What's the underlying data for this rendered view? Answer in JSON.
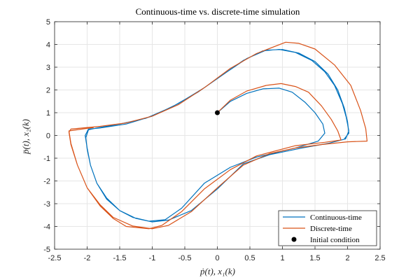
{
  "chart_data": {
    "type": "line",
    "title": "Continuous-time vs. discrete-time simulation",
    "xlabel": "ṗ(t), x₁(k)",
    "ylabel": "p̈(t), x₂(k)",
    "xlim": [
      -2.5,
      2.5
    ],
    "ylim": [
      -5,
      5
    ],
    "xticks": [
      -2.5,
      -2,
      -1.5,
      -1,
      -0.5,
      0,
      0.5,
      1,
      1.5,
      2,
      2.5
    ],
    "xtick_labels": [
      "-2.5",
      "-2",
      "-1.5",
      "-1",
      "-0.5",
      "0",
      "0.5",
      "1",
      "1.5",
      "2",
      "2.5"
    ],
    "yticks": [
      -5,
      -4,
      -3,
      -2,
      -1,
      0,
      1,
      2,
      3,
      4,
      5
    ],
    "ytick_labels": [
      "-5",
      "-4",
      "-3",
      "-2",
      "-1",
      "0",
      "1",
      "2",
      "3",
      "4",
      "5"
    ],
    "grid": true,
    "legend_position": "bottom-right",
    "series": [
      {
        "name": "Continuous-time",
        "color": "#0072BD",
        "points": [
          [
            0,
            1
          ],
          [
            0.2,
            1.5
          ],
          [
            0.45,
            1.85
          ],
          [
            0.7,
            2.05
          ],
          [
            0.95,
            2.08
          ],
          [
            1.15,
            1.9
          ],
          [
            1.35,
            1.45
          ],
          [
            1.5,
            1.0
          ],
          [
            1.62,
            0.5
          ],
          [
            1.65,
            0.1
          ],
          [
            1.55,
            -0.25
          ],
          [
            1.2,
            -0.55
          ],
          [
            0.6,
            -0.95
          ],
          [
            0.2,
            -1.4
          ],
          [
            -0.2,
            -2.1
          ],
          [
            -0.55,
            -3.2
          ],
          [
            -0.8,
            -3.7
          ],
          [
            -1.05,
            -3.77
          ],
          [
            -1.3,
            -3.6
          ],
          [
            -1.5,
            -3.3
          ],
          [
            -1.7,
            -2.75
          ],
          [
            -1.85,
            -2.1
          ],
          [
            -1.95,
            -1.3
          ],
          [
            -2.0,
            -0.6
          ],
          [
            -2.02,
            -0.1
          ],
          [
            -1.98,
            0.25
          ],
          [
            -1.85,
            0.33
          ],
          [
            -1.5,
            0.5
          ],
          [
            -1.1,
            0.75
          ],
          [
            -0.7,
            1.25
          ],
          [
            -0.3,
            1.9
          ],
          [
            0.1,
            2.7
          ],
          [
            0.4,
            3.3
          ],
          [
            0.7,
            3.72
          ],
          [
            0.95,
            3.78
          ],
          [
            1.2,
            3.65
          ],
          [
            1.45,
            3.3
          ],
          [
            1.65,
            2.8
          ],
          [
            1.8,
            2.2
          ],
          [
            1.92,
            1.4
          ],
          [
            1.98,
            0.8
          ],
          [
            2.02,
            0.2
          ],
          [
            1.97,
            -0.15
          ],
          [
            1.7,
            -0.35
          ],
          [
            1.3,
            -0.55
          ],
          [
            0.8,
            -0.85
          ],
          [
            0.4,
            -1.25
          ],
          [
            0.0,
            -2.35
          ],
          [
            -0.4,
            -3.3
          ],
          [
            -0.75,
            -3.72
          ],
          [
            -1.0,
            -3.8
          ],
          [
            -1.25,
            -3.65
          ],
          [
            -1.5,
            -3.3
          ],
          [
            -1.7,
            -2.8
          ],
          [
            -1.85,
            -2.1
          ],
          [
            -1.95,
            -1.3
          ],
          [
            -2.0,
            -0.55
          ],
          [
            -2.03,
            0.0
          ],
          [
            -1.98,
            0.28
          ],
          [
            -1.8,
            0.33
          ],
          [
            -1.4,
            0.5
          ],
          [
            -1.0,
            0.85
          ],
          [
            -0.6,
            1.4
          ],
          [
            -0.2,
            2.1
          ],
          [
            0.15,
            2.8
          ],
          [
            0.45,
            3.38
          ],
          [
            0.75,
            3.75
          ],
          [
            1.0,
            3.78
          ],
          [
            1.25,
            3.62
          ],
          [
            1.5,
            3.25
          ],
          [
            1.7,
            2.7
          ],
          [
            1.85,
            2.0
          ],
          [
            1.95,
            1.2
          ],
          [
            2.0,
            0.6
          ],
          [
            2.02,
            0.1
          ],
          [
            1.95,
            -0.15
          ]
        ]
      },
      {
        "name": "Discrete-time",
        "color": "#D95319",
        "points": [
          [
            0,
            1
          ],
          [
            0.2,
            1.55
          ],
          [
            0.45,
            1.95
          ],
          [
            0.75,
            2.2
          ],
          [
            0.98,
            2.28
          ],
          [
            1.2,
            2.15
          ],
          [
            1.4,
            1.9
          ],
          [
            1.6,
            1.3
          ],
          [
            1.75,
            0.7
          ],
          [
            1.85,
            0.2
          ],
          [
            1.9,
            -0.2
          ],
          [
            1.65,
            -0.3
          ],
          [
            1.2,
            -0.45
          ],
          [
            0.6,
            -0.9
          ],
          [
            0.2,
            -1.5
          ],
          [
            -0.2,
            -2.35
          ],
          [
            -0.55,
            -3.35
          ],
          [
            -0.85,
            -3.95
          ],
          [
            -1.05,
            -4.1
          ],
          [
            -1.4,
            -4.0
          ],
          [
            -1.6,
            -3.65
          ],
          [
            -1.8,
            -3.1
          ],
          [
            -2.0,
            -2.3
          ],
          [
            -2.15,
            -1.3
          ],
          [
            -2.25,
            -0.4
          ],
          [
            -2.28,
            0.15
          ],
          [
            -2.25,
            0.28
          ],
          [
            -1.8,
            0.4
          ],
          [
            -1.4,
            0.55
          ],
          [
            -1.0,
            0.85
          ],
          [
            -0.6,
            1.35
          ],
          [
            -0.2,
            2.1
          ],
          [
            0.2,
            2.95
          ],
          [
            0.6,
            3.6
          ],
          [
            1.05,
            4.1
          ],
          [
            1.25,
            4.05
          ],
          [
            1.5,
            3.8
          ],
          [
            1.8,
            3.1
          ],
          [
            2.05,
            2.2
          ],
          [
            2.2,
            1.1
          ],
          [
            2.28,
            0.3
          ],
          [
            2.3,
            -0.25
          ],
          [
            2.0,
            -0.28
          ],
          [
            1.6,
            -0.4
          ],
          [
            1.2,
            -0.55
          ],
          [
            0.8,
            -0.8
          ],
          [
            0.4,
            -1.3
          ],
          [
            0.0,
            -2.3
          ],
          [
            -0.4,
            -3.35
          ],
          [
            -0.75,
            -3.95
          ],
          [
            -1.0,
            -4.1
          ],
          [
            -1.3,
            -3.98
          ],
          [
            -1.6,
            -3.6
          ],
          [
            -1.8,
            -3.05
          ],
          [
            -2.0,
            -2.3
          ],
          [
            -2.15,
            -1.3
          ],
          [
            -2.25,
            -0.35
          ],
          [
            -2.28,
            0.2
          ],
          [
            -1.9,
            0.35
          ]
        ]
      }
    ],
    "markers": [
      {
        "name": "Initial condition",
        "x": 0,
        "y": 1,
        "color": "#000000"
      }
    ],
    "legend": [
      {
        "label": "Continuous-time",
        "kind": "line",
        "color": "#0072BD"
      },
      {
        "label": "Discrete-time",
        "kind": "line",
        "color": "#D95319"
      },
      {
        "label": "Initial condition",
        "kind": "dot",
        "color": "#000000"
      }
    ]
  }
}
